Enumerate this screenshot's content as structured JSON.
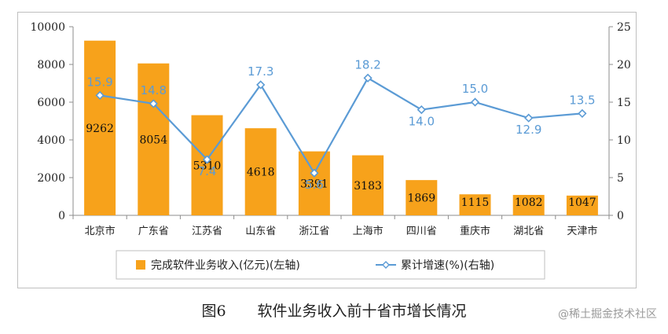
{
  "chart_data": {
    "type": "bar",
    "categories": [
      "北京市",
      "广东省",
      "江苏省",
      "山东省",
      "浙江省",
      "上海市",
      "四川省",
      "重庆市",
      "湖北省",
      "天津市"
    ],
    "series": [
      {
        "name": "完成软件业务收入(亿元)(左轴)",
        "type": "bar",
        "axis": "left",
        "color": "#f7a21b",
        "values": [
          9262,
          8054,
          5310,
          4618,
          3391,
          3183,
          1869,
          1115,
          1082,
          1047
        ]
      },
      {
        "name": "累计增速(%)(右轴)",
        "type": "line",
        "axis": "right",
        "color": "#5b9bd5",
        "values": [
          15.9,
          14.8,
          7.4,
          17.3,
          5.6,
          18.2,
          14.0,
          15.0,
          12.9,
          13.5
        ]
      }
    ],
    "y_left": {
      "lim": [
        0,
        10000
      ],
      "ticks": [
        "0",
        "2000",
        "4000",
        "6000",
        "8000",
        "10000"
      ]
    },
    "y_right": {
      "lim": [
        0,
        25
      ],
      "ticks": [
        "0",
        "5",
        "10",
        "15",
        "20",
        "25"
      ]
    },
    "line_labels": [
      "15.9",
      "14.8",
      "7.4",
      "17.3",
      "5.6",
      "18.2",
      "14.0",
      "15.0",
      "12.9",
      "13.5"
    ],
    "bar_labels": [
      "9262",
      "8054",
      "5310",
      "4618",
      "3391",
      "3183",
      "1869",
      "1115",
      "1082",
      "1047"
    ],
    "legend_position": "bottom",
    "grid": false
  },
  "caption": {
    "figure": "图6",
    "title": "软件业务收入前十省市增长情况"
  },
  "watermark": "@稀土掘金技术社区"
}
